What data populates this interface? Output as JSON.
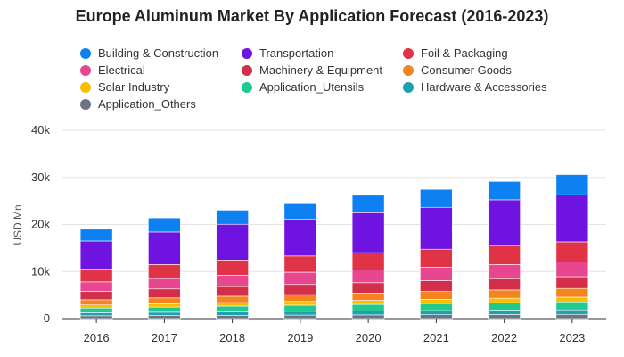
{
  "chart_data": {
    "type": "bar",
    "stacked": true,
    "title": "Europe Aluminum Market By Application Forecast (2016-2023)",
    "ylabel": "USD Mn",
    "xlabel": "",
    "ylim": [
      0,
      40000
    ],
    "y_ticks": [
      0,
      10000,
      20000,
      30000,
      40000
    ],
    "y_tick_labels": [
      "0",
      "10k",
      "20k",
      "30k",
      "40k"
    ],
    "grid": true,
    "legend_position": "top",
    "categories": [
      "2016",
      "2017",
      "2018",
      "2019",
      "2020",
      "2021",
      "2022",
      "2023"
    ],
    "series": [
      {
        "name": "Application_Others",
        "color": "#6b7480",
        "values": [
          600,
          650,
          700,
          750,
          780,
          820,
          860,
          900
        ]
      },
      {
        "name": "Hardware & Accessories",
        "color": "#1fa0b0",
        "values": [
          650,
          700,
          750,
          800,
          840,
          880,
          920,
          960
        ]
      },
      {
        "name": "Application_Utensils",
        "color": "#22c98e",
        "values": [
          1000,
          1100,
          1200,
          1300,
          1400,
          1500,
          1600,
          1700
        ]
      },
      {
        "name": "Solar Industry",
        "color": "#f7bf00",
        "values": [
          650,
          700,
          750,
          800,
          850,
          900,
          950,
          1000
        ]
      },
      {
        "name": "Consumer Goods",
        "color": "#f5831f",
        "values": [
          1100,
          1250,
          1350,
          1450,
          1550,
          1650,
          1750,
          1850
        ]
      },
      {
        "name": "Machinery & Equipment",
        "color": "#d42f4a",
        "values": [
          1800,
          1900,
          2050,
          2150,
          2200,
          2300,
          2400,
          2500
        ]
      },
      {
        "name": "Electrical",
        "color": "#e8478f",
        "values": [
          2000,
          2200,
          2400,
          2600,
          2700,
          2850,
          3000,
          3100
        ]
      },
      {
        "name": "Foil & Packaging",
        "color": "#e03346",
        "values": [
          2700,
          3000,
          3250,
          3450,
          3680,
          3850,
          4050,
          4300
        ]
      },
      {
        "name": "Transportation",
        "color": "#6f14e0",
        "values": [
          6000,
          6900,
          7600,
          7800,
          8500,
          8900,
          9700,
          10000
        ]
      },
      {
        "name": "Building & Construction",
        "color": "#0d80f2",
        "values": [
          2500,
          3000,
          3000,
          3300,
          3700,
          3800,
          3900,
          4300
        ]
      }
    ]
  },
  "legend": [
    {
      "label": "Building & Construction",
      "color": "#0d80f2"
    },
    {
      "label": "Transportation",
      "color": "#6f14e0"
    },
    {
      "label": "Foil & Packaging",
      "color": "#e03346"
    },
    {
      "label": "Electrical",
      "color": "#e8478f"
    },
    {
      "label": "Machinery & Equipment",
      "color": "#d42f4a"
    },
    {
      "label": "Consumer Goods",
      "color": "#f5831f"
    },
    {
      "label": "Solar Industry",
      "color": "#f7bf00"
    },
    {
      "label": "Application_Utensils",
      "color": "#22c98e"
    },
    {
      "label": "Hardware & Accessories",
      "color": "#1fa0b0"
    },
    {
      "label": "Application_Others",
      "color": "#6b7480"
    }
  ]
}
